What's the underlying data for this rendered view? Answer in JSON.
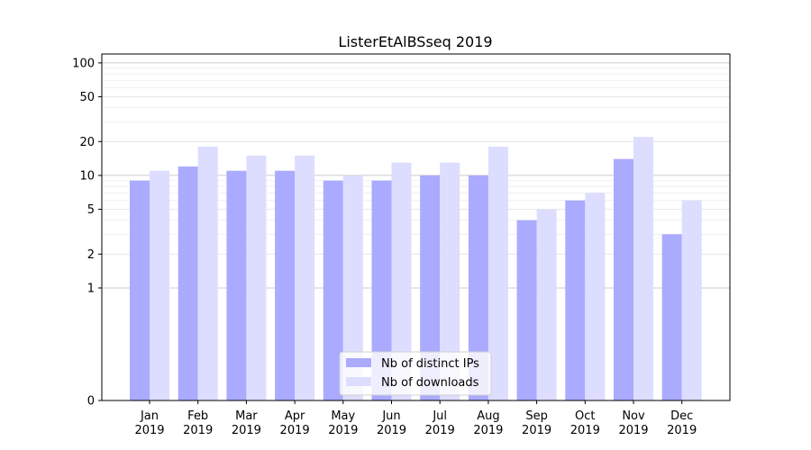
{
  "chart_data": {
    "type": "bar",
    "title": "ListerEtAlBSseq 2019",
    "xlabel": "",
    "ylabel": "",
    "yscale": "symlog",
    "ylim": [
      0,
      120
    ],
    "yticks": [
      {
        "value": 0,
        "label": "0"
      },
      {
        "value": 1,
        "label": "1"
      },
      {
        "value": 2,
        "label": "2"
      },
      {
        "value": 5,
        "label": "5"
      },
      {
        "value": 10,
        "label": "10"
      },
      {
        "value": 20,
        "label": "20"
      },
      {
        "value": 50,
        "label": "50"
      },
      {
        "value": 100,
        "label": "100"
      }
    ],
    "categories": [
      {
        "month": "Jan",
        "year": "2019"
      },
      {
        "month": "Feb",
        "year": "2019"
      },
      {
        "month": "Mar",
        "year": "2019"
      },
      {
        "month": "Apr",
        "year": "2019"
      },
      {
        "month": "May",
        "year": "2019"
      },
      {
        "month": "Jun",
        "year": "2019"
      },
      {
        "month": "Jul",
        "year": "2019"
      },
      {
        "month": "Aug",
        "year": "2019"
      },
      {
        "month": "Sep",
        "year": "2019"
      },
      {
        "month": "Oct",
        "year": "2019"
      },
      {
        "month": "Nov",
        "year": "2019"
      },
      {
        "month": "Dec",
        "year": "2019"
      }
    ],
    "series": [
      {
        "name": "Nb of distinct IPs",
        "color": "#aaaaff",
        "values": [
          9,
          12,
          11,
          11,
          9,
          9,
          10,
          10,
          4,
          6,
          14,
          3
        ]
      },
      {
        "name": "Nb of downloads",
        "color": "#ddddff",
        "values": [
          11,
          18,
          15,
          15,
          10,
          13,
          13,
          18,
          5,
          7,
          22,
          6
        ]
      }
    ],
    "grid": true,
    "legend_position": "bottom-center"
  }
}
